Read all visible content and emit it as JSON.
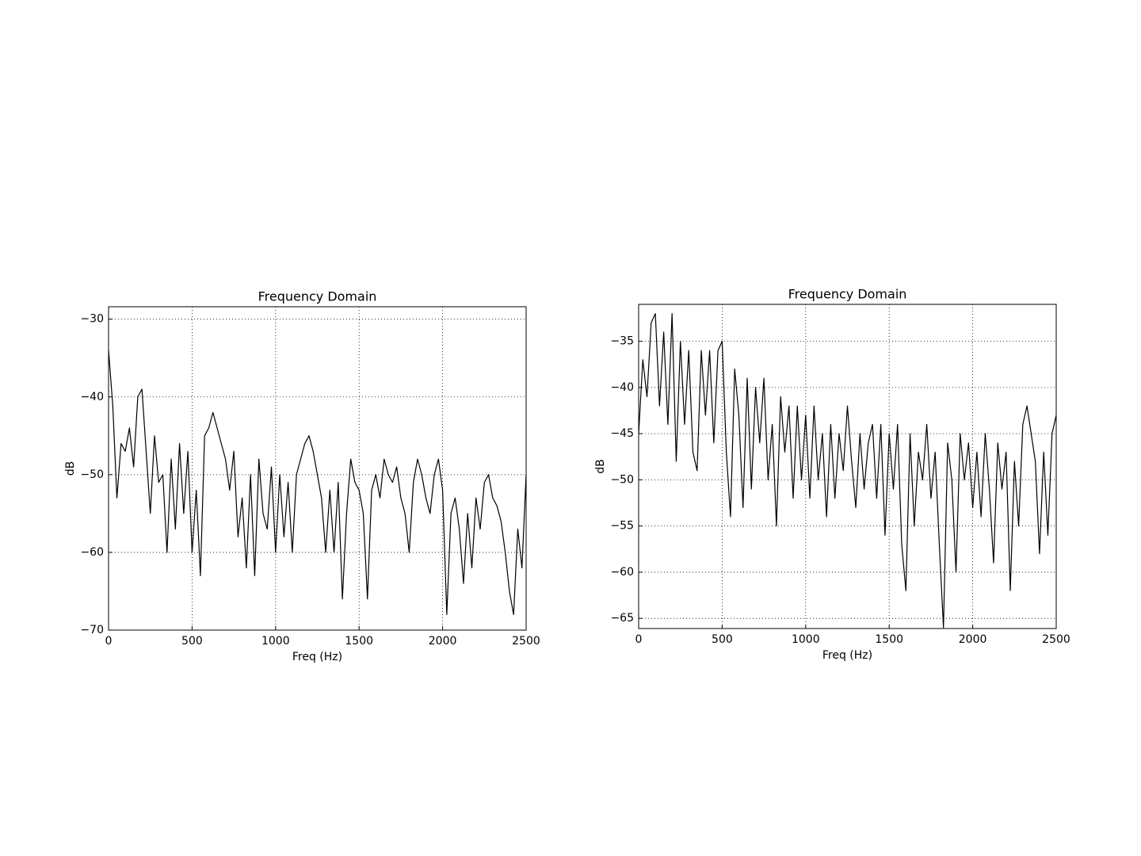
{
  "chart_data": [
    {
      "type": "line",
      "title": "Frequency Domain",
      "x_label": "Freq (Hz)",
      "y_label": "dB",
      "color": "#000000",
      "grid": true,
      "xlim": [
        0,
        2500
      ],
      "ylim": [
        -70,
        -28.4
      ],
      "xticks": [
        0,
        500,
        1000,
        1500,
        2000,
        2500
      ],
      "yticks": [
        {
          "value": -70,
          "label": "−70"
        },
        {
          "value": -60,
          "label": "−60"
        },
        {
          "value": -50,
          "label": "−50"
        },
        {
          "value": -40,
          "label": "−40"
        },
        {
          "value": -30,
          "label": "−30"
        }
      ],
      "x": [
        0,
        25,
        50,
        75,
        100,
        125,
        150,
        175,
        200,
        225,
        250,
        275,
        300,
        325,
        350,
        375,
        400,
        425,
        450,
        475,
        500,
        525,
        550,
        575,
        600,
        625,
        650,
        675,
        700,
        725,
        750,
        775,
        800,
        825,
        850,
        875,
        900,
        925,
        950,
        975,
        1000,
        1025,
        1050,
        1075,
        1100,
        1125,
        1150,
        1175,
        1200,
        1225,
        1250,
        1275,
        1300,
        1325,
        1350,
        1375,
        1400,
        1425,
        1450,
        1475,
        1500,
        1525,
        1550,
        1575,
        1600,
        1625,
        1650,
        1675,
        1700,
        1725,
        1750,
        1775,
        1800,
        1825,
        1850,
        1875,
        1900,
        1925,
        1950,
        1975,
        2000,
        2025,
        2050,
        2075,
        2100,
        2125,
        2150,
        2175,
        2200,
        2225,
        2250,
        2275,
        2300,
        2325,
        2350,
        2375,
        2400,
        2425,
        2450,
        2475,
        2500
      ],
      "values": [
        -34,
        -41,
        -53,
        -46,
        -47,
        -44,
        -49,
        -40,
        -39,
        -47,
        -55,
        -45,
        -51,
        -50,
        -60,
        -48,
        -57,
        -46,
        -55,
        -47,
        -60,
        -52,
        -63,
        -45,
        -44,
        -42,
        -44,
        -46,
        -48,
        -52,
        -47,
        -58,
        -53,
        -62,
        -50,
        -63,
        -48,
        -55,
        -57,
        -49,
        -60,
        -50,
        -58,
        -51,
        -60,
        -50,
        -48,
        -46,
        -45,
        -47,
        -50,
        -53,
        -60,
        -52,
        -60,
        -51,
        -66,
        -55,
        -48,
        -51,
        -52,
        -55,
        -66,
        -52,
        -50,
        -53,
        -48,
        -50,
        -51,
        -49,
        -53,
        -55,
        -60,
        -51,
        -48,
        -50,
        -53,
        -55,
        -50,
        -48,
        -52,
        -68,
        -55,
        -53,
        -57,
        -64,
        -55,
        -62,
        -53,
        -57,
        -51,
        -50,
        -53,
        -54,
        -56,
        -60,
        -65,
        -68,
        -57,
        -62,
        -50
      ]
    },
    {
      "type": "line",
      "title": "Frequency Domain",
      "x_label": "Freq (Hz)",
      "y_label": "dB",
      "color": "#000000",
      "grid": true,
      "xlim": [
        0,
        2500
      ],
      "ylim": [
        -66.1,
        -31
      ],
      "xticks": [
        0,
        500,
        1000,
        1500,
        2000,
        2500
      ],
      "yticks": [
        {
          "value": -65,
          "label": "−65"
        },
        {
          "value": -60,
          "label": "−60"
        },
        {
          "value": -55,
          "label": "−55"
        },
        {
          "value": -50,
          "label": "−50"
        },
        {
          "value": -45,
          "label": "−45"
        },
        {
          "value": -40,
          "label": "−40"
        },
        {
          "value": -35,
          "label": "−35"
        }
      ],
      "x": [
        0,
        25,
        50,
        75,
        100,
        125,
        150,
        175,
        200,
        225,
        250,
        275,
        300,
        325,
        350,
        375,
        400,
        425,
        450,
        475,
        500,
        525,
        550,
        575,
        600,
        625,
        650,
        675,
        700,
        725,
        750,
        775,
        800,
        825,
        850,
        875,
        900,
        925,
        950,
        975,
        1000,
        1025,
        1050,
        1075,
        1100,
        1125,
        1150,
        1175,
        1200,
        1225,
        1250,
        1275,
        1300,
        1325,
        1350,
        1375,
        1400,
        1425,
        1450,
        1475,
        1500,
        1525,
        1550,
        1575,
        1600,
        1625,
        1650,
        1675,
        1700,
        1725,
        1750,
        1775,
        1800,
        1825,
        1850,
        1875,
        1900,
        1925,
        1950,
        1975,
        2000,
        2025,
        2050,
        2075,
        2100,
        2125,
        2150,
        2175,
        2200,
        2225,
        2250,
        2275,
        2300,
        2325,
        2350,
        2375,
        2400,
        2425,
        2450,
        2475,
        2500
      ],
      "values": [
        -45,
        -37,
        -41,
        -33,
        -32,
        -42,
        -34,
        -44,
        -32,
        -48,
        -35,
        -44,
        -36,
        -47,
        -49,
        -36,
        -43,
        -36,
        -46,
        -36,
        -35,
        -47,
        -54,
        -38,
        -43,
        -53,
        -39,
        -51,
        -40,
        -46,
        -39,
        -50,
        -44,
        -55,
        -41,
        -47,
        -42,
        -52,
        -42,
        -50,
        -43,
        -52,
        -42,
        -50,
        -45,
        -54,
        -44,
        -52,
        -45,
        -49,
        -42,
        -48,
        -53,
        -45,
        -51,
        -46,
        -44,
        -52,
        -44,
        -56,
        -45,
        -51,
        -44,
        -57,
        -62,
        -45,
        -55,
        -47,
        -50,
        -44,
        -52,
        -47,
        -57,
        -66,
        -46,
        -50,
        -60,
        -45,
        -50,
        -46,
        -53,
        -47,
        -54,
        -45,
        -51,
        -59,
        -46,
        -51,
        -47,
        -62,
        -48,
        -55,
        -44,
        -42,
        -45,
        -48,
        -58,
        -47,
        -56,
        -45,
        -43
      ]
    }
  ]
}
